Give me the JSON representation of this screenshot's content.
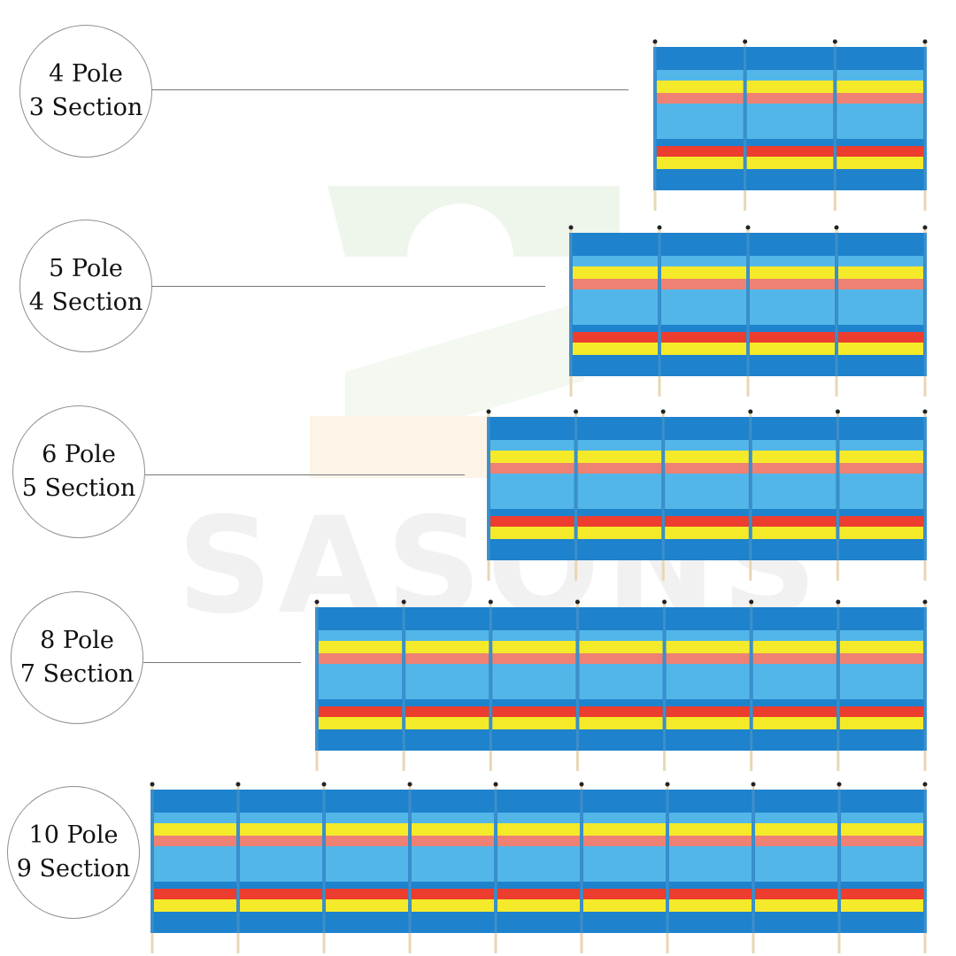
{
  "watermark": {
    "text": "SASONS",
    "brand_colors": [
      "#e8f3e6",
      "#fdf0e0"
    ]
  },
  "colors": {
    "blue": "#1e82cc",
    "light_blue": "#53b6e8",
    "yellow": "#f5ea2a",
    "red": "#ec3d2f",
    "salmon": "#ee8173",
    "pole": "#e8d7b6",
    "pole_cap": "#222222"
  },
  "variants": [
    {
      "poles": 4,
      "sections": 3,
      "pole_label": "4 Pole",
      "section_label": "3 Section"
    },
    {
      "poles": 5,
      "sections": 4,
      "pole_label": "5 Pole",
      "section_label": "4 Section"
    },
    {
      "poles": 6,
      "sections": 5,
      "pole_label": "6 Pole",
      "section_label": "5 Section"
    },
    {
      "poles": 8,
      "sections": 7,
      "pole_label": "8 Pole",
      "section_label": "7 Section"
    },
    {
      "poles": 10,
      "sections": 9,
      "pole_label": "10 Pole",
      "section_label": "9 Section"
    }
  ]
}
